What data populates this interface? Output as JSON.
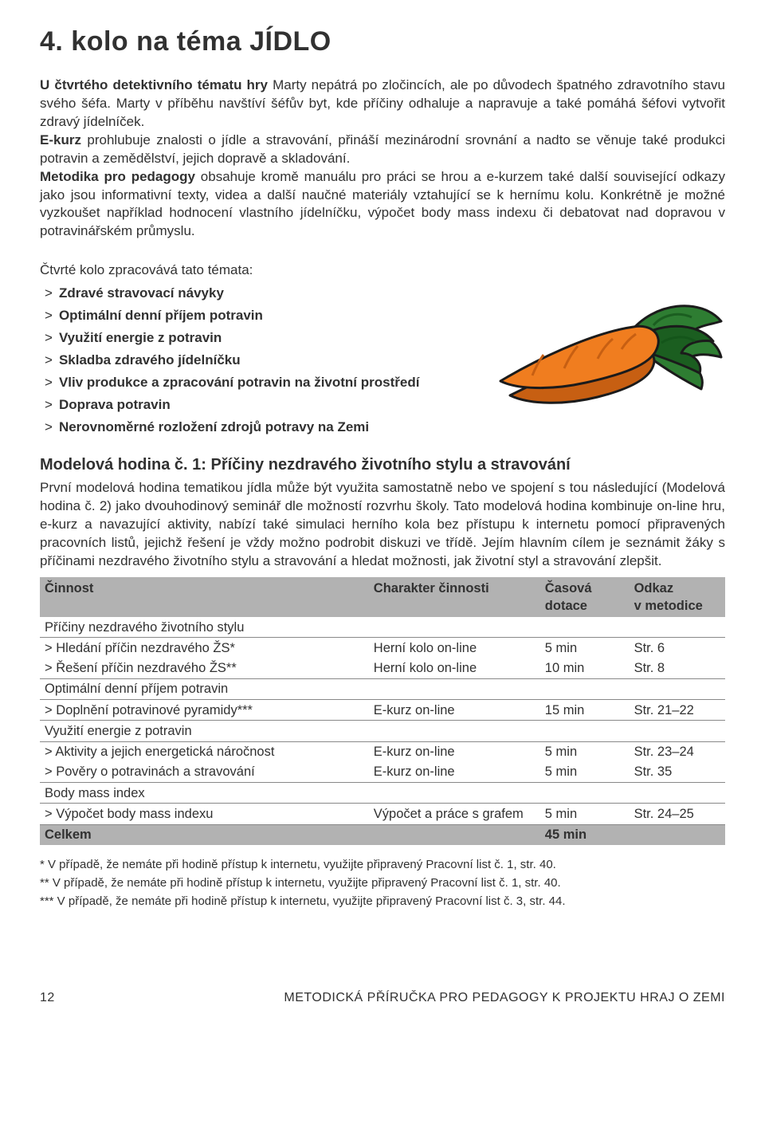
{
  "colors": {
    "text": "#313131",
    "background": "#ffffff",
    "table_header_bg": "#b2b2b2",
    "row_border": "#888888",
    "carrot_orange": "#f07d1f",
    "carrot_orange_dark": "#c75f12",
    "leaf_green": "#2e7d32",
    "leaf_green_dark": "#1b5e20",
    "outline": "#1b1b1b"
  },
  "typography": {
    "base_family": "Arial, Helvetica, sans-serif",
    "h1_size_pt": 26,
    "h2_size_pt": 15,
    "body_size_pt": 13,
    "footnote_size_pt": 11
  },
  "heading": "4. kolo na téma JÍDLO",
  "intro": {
    "p1a": "U čtvrtého detektivního tématu hry",
    "p1b": " Marty nepátrá po zločincích, ale po důvodech špatného zdravotního stavu svého šéfa. Marty v příběhu navštíví šéfův byt, kde příčiny odhaluje a napravuje a také pomáhá šéfovi vytvořit zdravý jídelníček.",
    "p2a": "E-kurz",
    "p2b": " prohlubuje znalosti o jídle a stravování, přináší mezinárodní srovnání a nadto se věnuje také produkci potravin a zemědělství, jejich dopravě a skladování.",
    "p3a": "Metodika pro pedagogy",
    "p3b": " obsahuje kromě manuálu pro práci se hrou a e-kurzem také další související odkazy jako jsou informativní texty, videa a další naučné materiály vztahující se k hernímu kolu. Konkrétně je možné vyzkoušet například hodnocení vlastního jídelníčku, výpočet body mass indexu či debatovat nad dopravou v potravinářském průmyslu."
  },
  "themes": {
    "intro": "Čtvrté kolo zpracovává tato témata:",
    "items": [
      "Zdravé stravovací návyky",
      "Optimální denní příjem potravin",
      "Využití energie z potravin",
      "Skladba zdravého jídelníčku",
      "Vliv produkce a zpracování potravin na životní prostředí",
      "Doprava potravin",
      "Nerovnoměrné rozložení zdrojů potravy na Zemi"
    ]
  },
  "model": {
    "heading": "Modelová hodina č. 1: Příčiny nezdravého životního stylu a stravování",
    "desc": "První modelová hodina tematikou jídla může být využita samostatně nebo ve spojení s tou následující (Modelová hodina č. 2) jako dvouhodinový seminář dle možností rozvrhu školy. Tato modelová hodina kombinuje on-line hru, e-kurz a navazující aktivity, nabízí také simulaci herního kola bez přístupu k internetu pomocí připravených pracovních listů, jejichž řešení je vždy možno podrobit diskuzi ve třídě. Jejím hlavním cílem je seznámit žáky s příčinami nezdravého životního stylu a stravování a hledat možnosti, jak životní styl a stravování zlepšit."
  },
  "table": {
    "headers": {
      "cinnost": "Činnost",
      "charakter": "Charakter činnosti",
      "casova1": "Časová",
      "casova2": "dotace",
      "odkaz1": "Odkaz",
      "odkaz2": "v metodice"
    },
    "rows": [
      {
        "type": "section",
        "c1": "Příčiny nezdravého životního stylu"
      },
      {
        "type": "item",
        "noline": true,
        "c1": "Hledání příčin nezdravého ŽS*",
        "c2": "Herní kolo on-line",
        "c3": "5 min",
        "c4": "Str. 6"
      },
      {
        "type": "item",
        "c1": "Řešení příčin nezdravého ŽS**",
        "c2": "Herní kolo on-line",
        "c3": "10 min",
        "c4": "Str. 8"
      },
      {
        "type": "section",
        "c1": "Optimální denní příjem potravin"
      },
      {
        "type": "item",
        "c1": "Doplnění potravinové pyramidy***",
        "c2": "E-kurz on-line",
        "c3": "15 min",
        "c4": "Str. 21–22"
      },
      {
        "type": "section",
        "c1": "Využití energie z potravin"
      },
      {
        "type": "item",
        "noline": true,
        "c1": "Aktivity a jejich energetická náročnost",
        "c2": "E-kurz on-line",
        "c3": "5 min",
        "c4": "Str. 23–24"
      },
      {
        "type": "item",
        "c1": "Pověry o potravinách a stravování",
        "c2": "E-kurz on-line",
        "c3": "5 min",
        "c4": "Str. 35"
      },
      {
        "type": "section",
        "c1": "Body mass index"
      },
      {
        "type": "item",
        "c1": "Výpočet body mass indexu",
        "c2": "Výpočet a práce s grafem",
        "c3": "5 min",
        "c4": "Str. 24–25"
      }
    ],
    "total": {
      "label": "Celkem",
      "time": "45 min"
    }
  },
  "footnotes": {
    "n1": "* V případě, že nemáte při hodině přístup k internetu, využijte připravený Pracovní list č. 1, str. 40.",
    "n2": "** V případě, že nemáte při hodině přístup k internetu, využijte připravený Pracovní list č. 1, str. 40.",
    "n3": "*** V případě, že nemáte při hodině přístup k internetu, využijte připravený Pracovní list č. 3, str. 44."
  },
  "footer": {
    "page": "12",
    "title": "METODICKÁ PŘÍRUČKA PRO PEDAGOGY K PROJEKTU HRAJ O ZEMI"
  }
}
